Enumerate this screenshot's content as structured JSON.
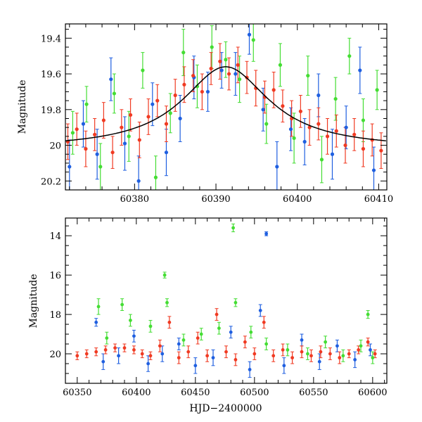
{
  "chart_data": [
    {
      "type": "scatter",
      "title": "",
      "xlabel": "",
      "ylabel": "Magnitude",
      "xlim": [
        60371.5,
        60411
      ],
      "ylim": [
        20.25,
        19.32
      ],
      "y_inverted": true,
      "xticks": [
        60380,
        60390,
        60400,
        60410
      ],
      "xtick_labels": [
        "60380",
        "60390",
        "60400",
        "60410"
      ],
      "yticks": [
        19.4,
        19.6,
        19.8,
        20.0,
        20.2
      ],
      "ytick_labels": [
        "19.4",
        "19.6",
        "19.8",
        "20",
        "20.2"
      ],
      "colors": {
        "green": "#44dd33",
        "blue": "#1f5fe0",
        "red": "#f03a22",
        "model": "#000000"
      },
      "model_curve": {
        "peak_x": 60391.2,
        "baseline_mag": 20.02,
        "peak_mag": 19.56,
        "timescale_days": 6.5
      },
      "series": [
        {
          "color": "green",
          "points": [
            [
              60372.4,
              19.93,
              0.12
            ],
            [
              60374.1,
              19.77,
              0.1
            ],
            [
              60375.8,
              20.12,
              0.13
            ],
            [
              60377.5,
              19.71,
              0.11
            ],
            [
              60379.3,
              19.95,
              0.14
            ],
            [
              60381.0,
              19.58,
              0.1
            ],
            [
              60382.6,
              20.18,
              0.12
            ],
            [
              60384.4,
              19.82,
              0.11
            ],
            [
              60386.0,
              19.48,
              0.13
            ],
            [
              60387.7,
              19.67,
              0.12
            ],
            [
              60389.5,
              19.45,
              0.12
            ],
            [
              60391.2,
              19.52,
              0.1
            ],
            [
              60392.9,
              19.63,
              0.13
            ],
            [
              60394.6,
              19.41,
              0.12
            ],
            [
              60396.2,
              19.88,
              0.11
            ],
            [
              60397.9,
              19.55,
              0.12
            ],
            [
              60399.6,
              19.96,
              0.14
            ],
            [
              60401.3,
              19.61,
              0.11
            ],
            [
              60403.0,
              20.08,
              0.13
            ],
            [
              60404.7,
              19.74,
              0.12
            ],
            [
              60406.4,
              19.5,
              0.1
            ],
            [
              60408.1,
              19.86,
              0.12
            ],
            [
              60409.8,
              19.69,
              0.11
            ]
          ]
        },
        {
          "color": "blue",
          "points": [
            [
              60372.0,
              20.12,
              0.15
            ],
            [
              60373.7,
              19.88,
              0.13
            ],
            [
              60375.4,
              20.05,
              0.14
            ],
            [
              60377.1,
              19.63,
              0.12
            ],
            [
              60378.8,
              19.99,
              0.15
            ],
            [
              60380.5,
              20.2,
              0.14
            ],
            [
              60382.2,
              19.77,
              0.12
            ],
            [
              60383.9,
              20.04,
              0.13
            ],
            [
              60385.6,
              19.85,
              0.13
            ],
            [
              60387.3,
              19.62,
              0.12
            ],
            [
              60389.0,
              19.7,
              0.11
            ],
            [
              60390.7,
              19.58,
              0.1
            ],
            [
              60392.4,
              19.6,
              0.12
            ],
            [
              60394.1,
              19.38,
              0.11
            ],
            [
              60395.8,
              19.8,
              0.12
            ],
            [
              60397.5,
              20.12,
              0.14
            ],
            [
              60399.2,
              19.91,
              0.12
            ],
            [
              60400.9,
              19.98,
              0.13
            ],
            [
              60402.6,
              19.72,
              0.12
            ],
            [
              60404.3,
              20.05,
              0.14
            ],
            [
              60406.0,
              19.9,
              0.12
            ],
            [
              60407.7,
              19.58,
              0.13
            ],
            [
              60409.4,
              20.14,
              0.13
            ]
          ]
        },
        {
          "color": "red",
          "points": [
            [
              60371.8,
              19.98,
              0.1
            ],
            [
              60372.9,
              19.91,
              0.09
            ],
            [
              60374.0,
              20.02,
              0.1
            ],
            [
              60375.1,
              19.94,
              0.09
            ],
            [
              60376.2,
              19.86,
              0.1
            ],
            [
              60377.3,
              20.04,
              0.09
            ],
            [
              60378.4,
              19.9,
              0.1
            ],
            [
              60379.5,
              19.83,
              0.09
            ],
            [
              60380.6,
              19.97,
              0.1
            ],
            [
              60381.7,
              19.84,
              0.1
            ],
            [
              60382.8,
              19.75,
              0.09
            ],
            [
              60383.9,
              19.88,
              0.1
            ],
            [
              60385.0,
              19.72,
              0.09
            ],
            [
              60386.1,
              19.66,
              0.1
            ],
            [
              60387.2,
              19.61,
              0.09
            ],
            [
              60388.3,
              19.7,
              0.1
            ],
            [
              60389.4,
              19.57,
              0.09
            ],
            [
              60390.5,
              19.53,
              0.1
            ],
            [
              60391.6,
              19.6,
              0.09
            ],
            [
              60392.7,
              19.55,
              0.1
            ],
            [
              60393.8,
              19.62,
              0.09
            ],
            [
              60394.9,
              19.68,
              0.1
            ],
            [
              60396.0,
              19.73,
              0.09
            ],
            [
              60397.1,
              19.69,
              0.1
            ],
            [
              60398.2,
              19.78,
              0.09
            ],
            [
              60399.3,
              19.85,
              0.1
            ],
            [
              60400.4,
              19.81,
              0.09
            ],
            [
              60401.5,
              19.9,
              0.1
            ],
            [
              60402.6,
              19.88,
              0.09
            ],
            [
              60403.7,
              19.95,
              0.1
            ],
            [
              60404.8,
              19.92,
              0.09
            ],
            [
              60405.9,
              20.0,
              0.1
            ],
            [
              60407.0,
              19.94,
              0.09
            ],
            [
              60408.1,
              20.02,
              0.1
            ],
            [
              60409.2,
              19.97,
              0.09
            ],
            [
              60410.3,
              20.03,
              0.1
            ]
          ]
        }
      ]
    },
    {
      "type": "scatter",
      "title": "",
      "xlabel": "HJD−2400000",
      "ylabel": "Magnitude",
      "xlim": [
        60340,
        60612
      ],
      "ylim": [
        21.5,
        13.1
      ],
      "y_inverted": true,
      "xticks": [
        60350,
        60400,
        60450,
        60500,
        60550,
        60600
      ],
      "xtick_labels": [
        "60350",
        "60400",
        "60450",
        "60500",
        "60550",
        "60600"
      ],
      "yticks": [
        14,
        16,
        18,
        20
      ],
      "ytick_labels": [
        "14",
        "16",
        "18",
        "20"
      ],
      "colors": {
        "green": "#44dd33",
        "blue": "#1f5fe0",
        "red": "#f03a22"
      },
      "series": [
        {
          "color": "green",
          "points": [
            [
              60368,
              17.6,
              0.4
            ],
            [
              60375,
              19.2,
              0.3
            ],
            [
              60388,
              17.5,
              0.3
            ],
            [
              60395,
              18.3,
              0.3
            ],
            [
              60412,
              18.6,
              0.3
            ],
            [
              60424,
              16.0,
              0.15
            ],
            [
              60426,
              17.4,
              0.2
            ],
            [
              60440,
              19.3,
              0.3
            ],
            [
              60455,
              19.0,
              0.3
            ],
            [
              60470,
              18.7,
              0.3
            ],
            [
              60482,
              13.6,
              0.2
            ],
            [
              60484,
              17.4,
              0.2
            ],
            [
              60497,
              18.9,
              0.3
            ],
            [
              60510,
              19.5,
              0.3
            ],
            [
              60528,
              19.8,
              0.3
            ],
            [
              60545,
              20.0,
              0.3
            ],
            [
              60560,
              19.4,
              0.3
            ],
            [
              60575,
              20.1,
              0.3
            ],
            [
              60590,
              19.6,
              0.3
            ],
            [
              60596,
              18.0,
              0.2
            ],
            [
              60600,
              20.2,
              0.3
            ]
          ]
        },
        {
          "color": "blue",
          "points": [
            [
              60366,
              18.4,
              0.2
            ],
            [
              60372,
              20.4,
              0.4
            ],
            [
              60385,
              20.1,
              0.4
            ],
            [
              60398,
              19.1,
              0.3
            ],
            [
              60410,
              20.5,
              0.4
            ],
            [
              60422,
              20.0,
              0.4
            ],
            [
              60436,
              19.5,
              0.3
            ],
            [
              60450,
              20.6,
              0.4
            ],
            [
              60465,
              20.2,
              0.4
            ],
            [
              60480,
              18.9,
              0.3
            ],
            [
              60496,
              20.8,
              0.4
            ],
            [
              60505,
              17.8,
              0.3
            ],
            [
              60510,
              13.9,
              0.1
            ],
            [
              60525,
              20.6,
              0.4
            ],
            [
              60540,
              19.3,
              0.3
            ],
            [
              60555,
              20.4,
              0.4
            ],
            [
              60570,
              19.6,
              0.3
            ],
            [
              60585,
              20.3,
              0.4
            ],
            [
              60598,
              19.8,
              0.3
            ]
          ]
        },
        {
          "color": "red",
          "points": [
            [
              60350,
              20.1,
              0.2
            ],
            [
              60358,
              20.0,
              0.2
            ],
            [
              60366,
              19.9,
              0.2
            ],
            [
              60374,
              19.8,
              0.2
            ],
            [
              60382,
              19.7,
              0.2
            ],
            [
              60390,
              19.7,
              0.2
            ],
            [
              60398,
              19.8,
              0.2
            ],
            [
              60405,
              20.0,
              0.2
            ],
            [
              60412,
              20.1,
              0.2
            ],
            [
              60420,
              19.6,
              0.3
            ],
            [
              60428,
              18.4,
              0.3
            ],
            [
              60436,
              20.2,
              0.3
            ],
            [
              60444,
              19.9,
              0.3
            ],
            [
              60452,
              19.2,
              0.3
            ],
            [
              60460,
              20.1,
              0.3
            ],
            [
              60468,
              18.0,
              0.3
            ],
            [
              60476,
              19.9,
              0.3
            ],
            [
              60484,
              20.3,
              0.3
            ],
            [
              60492,
              19.4,
              0.3
            ],
            [
              60500,
              20.0,
              0.3
            ],
            [
              60508,
              18.4,
              0.3
            ],
            [
              60516,
              20.1,
              0.3
            ],
            [
              60524,
              19.8,
              0.3
            ],
            [
              60532,
              20.2,
              0.3
            ],
            [
              60540,
              19.9,
              0.3
            ],
            [
              60548,
              20.1,
              0.3
            ],
            [
              60556,
              19.9,
              0.3
            ],
            [
              60564,
              20.0,
              0.3
            ],
            [
              60572,
              20.2,
              0.3
            ],
            [
              60580,
              20.0,
              0.2
            ],
            [
              60588,
              19.8,
              0.2
            ],
            [
              60596,
              19.4,
              0.2
            ],
            [
              60602,
              20.0,
              0.2
            ]
          ]
        }
      ]
    }
  ]
}
